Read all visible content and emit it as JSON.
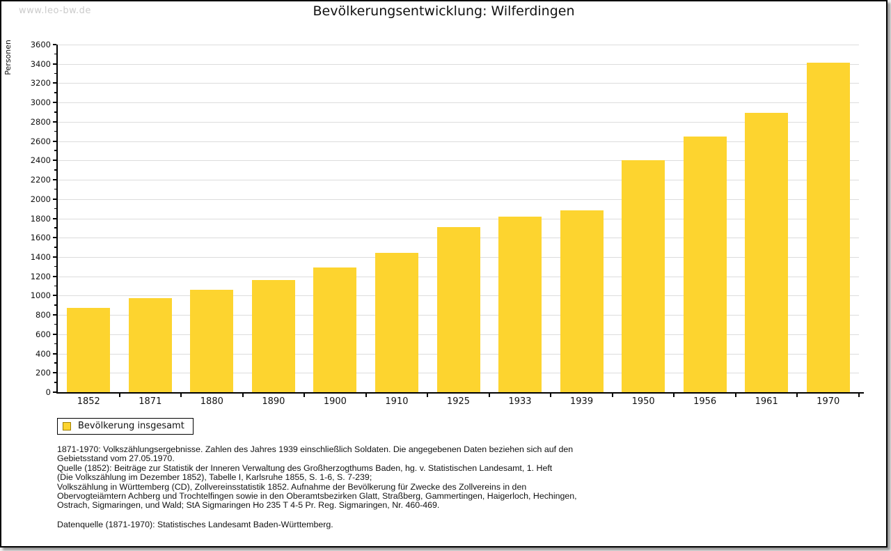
{
  "watermark": "www.leo-bw.de",
  "header": {
    "title": "Bevölkerungsentwicklung: Wilferdingen"
  },
  "colors": {
    "bar": "#fdd42f",
    "legend_swatch_border": "#a08000",
    "grid": "#dcdcdc",
    "axis": "#000000",
    "watermark": "#cbcbcb"
  },
  "chart_data": {
    "type": "bar",
    "title": "Bevölkerungsentwicklung: Wilferdingen",
    "xlabel": "",
    "ylabel": "Personen",
    "categories": [
      "1852",
      "1871",
      "1880",
      "1890",
      "1900",
      "1910",
      "1925",
      "1933",
      "1939",
      "1950",
      "1956",
      "1961",
      "1970"
    ],
    "series": [
      {
        "name": "Bevölkerung insgesamt",
        "values": [
          870,
          975,
          1060,
          1160,
          1290,
          1440,
          1710,
          1820,
          1880,
          2400,
          2650,
          2895,
          3415
        ]
      }
    ],
    "ylim": [
      0,
      3600
    ],
    "ytick_step": 200,
    "ytick_minor_step": 100,
    "grid": true,
    "legend_position": "bottom-left",
    "bar_color": "#fdd42f"
  },
  "legend": {
    "label": "Bevölkerung insgesamt"
  },
  "footnotes": {
    "lines": [
      "1871-1970: Volkszählungsergebnisse. Zahlen des Jahres 1939 einschließlich Soldaten. Die angegebenen Daten beziehen sich auf den",
      "Gebietsstand vom 27.05.1970.",
      "Quelle (1852): Beiträge zur Statistik der Inneren Verwaltung des Großherzogthums Baden, hg. v. Statistischen Landesamt, 1. Heft",
      "(Die Volkszählung im Dezember 1852), Tabelle I, Karlsruhe 1855, S. 1-6, S. 7-239;",
      "Volkszählung in Württemberg (CD), Zollvereinsstatistik 1852. Aufnahme der Bevölkerung für Zwecke des Zollvereins in den",
      "Obervogteiämtern Achberg und Trochtelfingen sowie in den Oberamtsbezirken Glatt, Straßberg, Gammertingen, Haigerloch, Hechingen,",
      "Ostrach, Sigmaringen, und Wald; StA Sigmaringen Ho 235 T 4-5 Pr. Reg. Sigmaringen, Nr. 460-469."
    ],
    "datasource": "Datenquelle (1871-1970): Statistisches Landesamt Baden-Württemberg."
  }
}
